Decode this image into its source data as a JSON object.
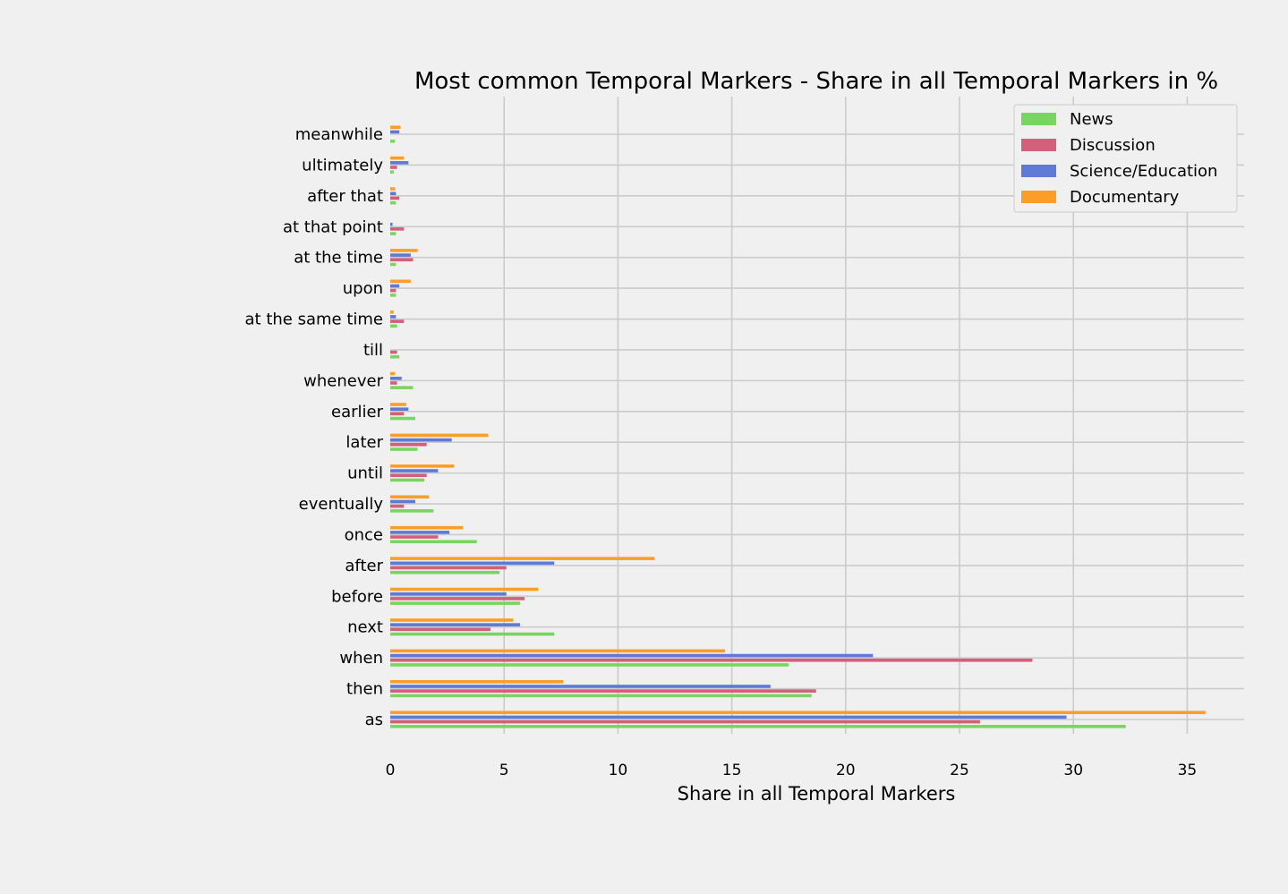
{
  "chart_data": {
    "type": "bar",
    "orientation": "horizontal",
    "title": "Most common Temporal Markers - Share in all Temporal Markers in %",
    "xlabel": "Share in all Temporal Markers",
    "ylabel": "",
    "xlim": [
      0,
      37.5
    ],
    "xticks": [
      0,
      5,
      10,
      15,
      20,
      25,
      30,
      35
    ],
    "grid": true,
    "legend_position": "top-right",
    "categories": [
      "as",
      "then",
      "when",
      "next",
      "before",
      "after",
      "once",
      "eventually",
      "until",
      "later",
      "earlier",
      "whenever",
      "till",
      "at the same time",
      "upon",
      "at the time",
      "at that point",
      "after that",
      "ultimately",
      "meanwhile"
    ],
    "series": [
      {
        "name": "News",
        "color": "#77d560",
        "values": [
          32.3,
          18.5,
          17.5,
          7.2,
          5.7,
          4.8,
          3.8,
          1.9,
          1.5,
          1.2,
          1.1,
          1.0,
          0.4,
          0.3,
          0.25,
          0.25,
          0.25,
          0.25,
          0.15,
          0.2
        ]
      },
      {
        "name": "Discussion",
        "color": "#d3607a",
        "values": [
          25.9,
          18.7,
          28.2,
          4.4,
          5.9,
          5.1,
          2.1,
          0.6,
          1.6,
          1.6,
          0.6,
          0.3,
          0.3,
          0.6,
          0.25,
          1.0,
          0.6,
          0.4,
          0.3,
          0.0
        ]
      },
      {
        "name": "Science/Education",
        "color": "#5e7ad6",
        "values": [
          29.7,
          16.7,
          21.2,
          5.7,
          5.1,
          7.2,
          2.6,
          1.1,
          2.1,
          2.7,
          0.8,
          0.5,
          0.0,
          0.25,
          0.4,
          0.9,
          0.1,
          0.25,
          0.8,
          0.4
        ]
      },
      {
        "name": "Documentary",
        "color": "#fb9d29",
        "values": [
          35.8,
          7.6,
          14.7,
          5.4,
          6.5,
          11.6,
          3.2,
          1.7,
          2.8,
          4.3,
          0.7,
          0.2,
          0.0,
          0.15,
          0.9,
          1.2,
          0.0,
          0.2,
          0.6,
          0.45
        ]
      }
    ]
  }
}
